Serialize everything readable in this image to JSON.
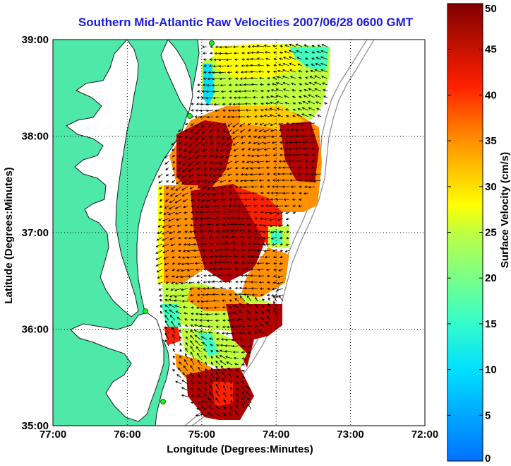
{
  "title": "Southern Mid-Atlantic Raw Velocities 2007/06/28 0600 GMT",
  "map": {
    "xlabel": "Longitude (Degrees:Minutes)",
    "ylabel": "Latitude (Degrees:Minutes)",
    "lon_range": [
      -77,
      -72
    ],
    "lat_range": [
      35,
      39
    ],
    "x_ticks": [
      {
        "value": -77,
        "label": "77:00"
      },
      {
        "value": -76,
        "label": "76:00"
      },
      {
        "value": -75,
        "label": "75:00"
      },
      {
        "value": -74,
        "label": "74:00"
      },
      {
        "value": -73,
        "label": "73:00"
      },
      {
        "value": -72,
        "label": "72:00"
      }
    ],
    "y_ticks": [
      {
        "value": 35,
        "label": "35:00"
      },
      {
        "value": 36,
        "label": "36:00"
      },
      {
        "value": 37,
        "label": "37:00"
      },
      {
        "value": 38,
        "label": "38:00"
      },
      {
        "value": 39,
        "label": "39:00"
      }
    ],
    "grid": "dotted",
    "land_color": "#4ee8a8",
    "station_color": "#22ee22"
  },
  "colorbar": {
    "label": "Surface Velocity (cm/s)",
    "range": [
      0,
      50
    ],
    "ticks": [
      {
        "value": 0,
        "label": "0"
      },
      {
        "value": 5,
        "label": "5"
      },
      {
        "value": 10,
        "label": "10"
      },
      {
        "value": 15,
        "label": "15"
      },
      {
        "value": 20,
        "label": "20"
      },
      {
        "value": 25,
        "label": "25"
      },
      {
        "value": 30,
        "label": "30"
      },
      {
        "value": 35,
        "label": "35"
      },
      {
        "value": 40,
        "label": "40"
      },
      {
        "value": 45,
        "label": "45"
      },
      {
        "value": 50,
        "label": "50"
      }
    ],
    "colormap": "jet"
  }
}
